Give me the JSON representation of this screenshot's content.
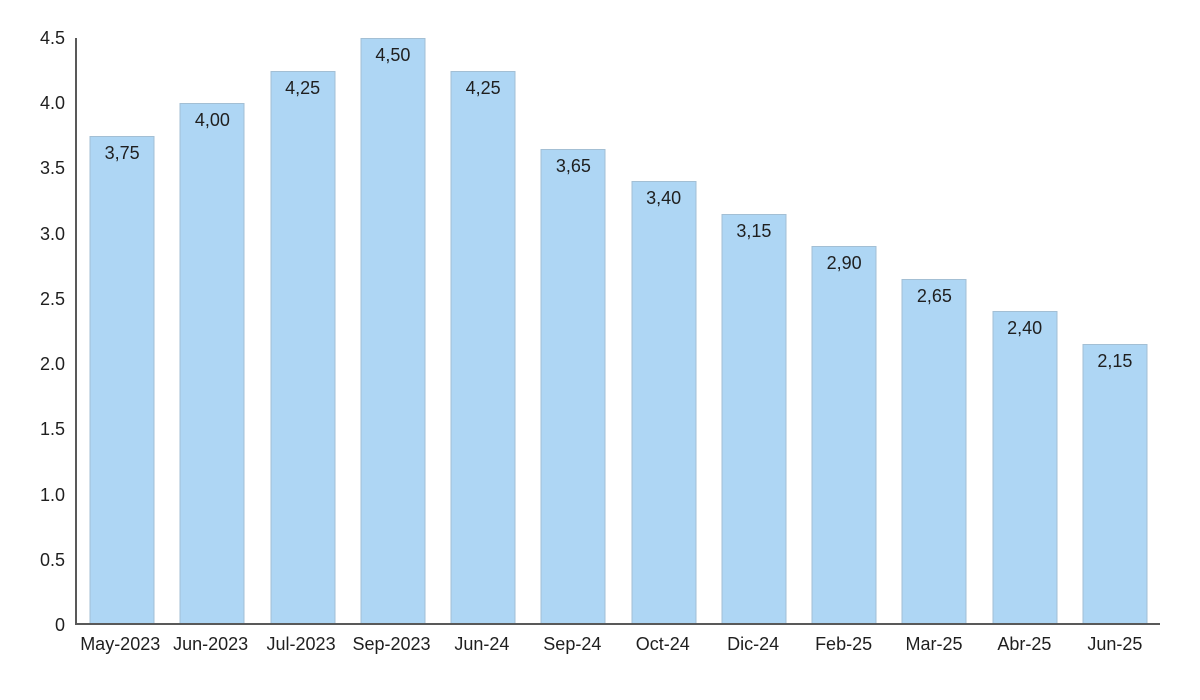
{
  "chart_data": {
    "type": "bar",
    "title": "",
    "xlabel": "",
    "ylabel": "",
    "categories": [
      "May-2023",
      "Jun-2023",
      "Jul-2023",
      "Sep-2023",
      "Jun-24",
      "Sep-24",
      "Oct-24",
      "Dic-24",
      "Feb-25",
      "Mar-25",
      "Abr-25",
      "Jun-25"
    ],
    "values": [
      3.75,
      4.0,
      4.25,
      4.5,
      4.25,
      3.65,
      3.4,
      3.15,
      2.9,
      2.65,
      2.4,
      2.15
    ],
    "value_labels": [
      "3,75",
      "4,00",
      "4,25",
      "4,50",
      "4,25",
      "3,65",
      "3,40",
      "3,15",
      "2,90",
      "2,65",
      "2,40",
      "2,15"
    ],
    "value_label_position": "inside-top",
    "ylim": [
      0,
      4.5
    ],
    "y_ticks": [
      {
        "label": "4.5",
        "value": 4.5
      },
      {
        "label": "4.0",
        "value": 4.0
      },
      {
        "label": "3.5",
        "value": 3.5
      },
      {
        "label": "3.0",
        "value": 3.0
      },
      {
        "label": "2.5",
        "value": 2.5
      },
      {
        "label": "2.0",
        "value": 2.0
      },
      {
        "label": "1.5",
        "value": 1.5
      },
      {
        "label": "1.0",
        "value": 1.0
      },
      {
        "label": "0.5",
        "value": 0.5
      },
      {
        "label": "0",
        "value": 0
      }
    ],
    "grid": false,
    "legend": false,
    "colors": {
      "bar_fill": "#aed6f4",
      "bar_border": "#a3bfd4",
      "axis_line": "#595959",
      "text": "#1f1f1f",
      "background": "#ffffff"
    }
  }
}
